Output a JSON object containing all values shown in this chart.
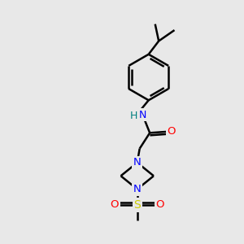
{
  "background_color": "#e8e8e8",
  "bond_color": "#000000",
  "N_color": "#0000ff",
  "O_color": "#ff0000",
  "S_color": "#cccc00",
  "H_color": "#008080",
  "line_width": 1.8,
  "figsize": [
    3.0,
    3.0
  ],
  "dpi": 100,
  "xlim": [
    0,
    10
  ],
  "ylim": [
    0,
    10
  ]
}
